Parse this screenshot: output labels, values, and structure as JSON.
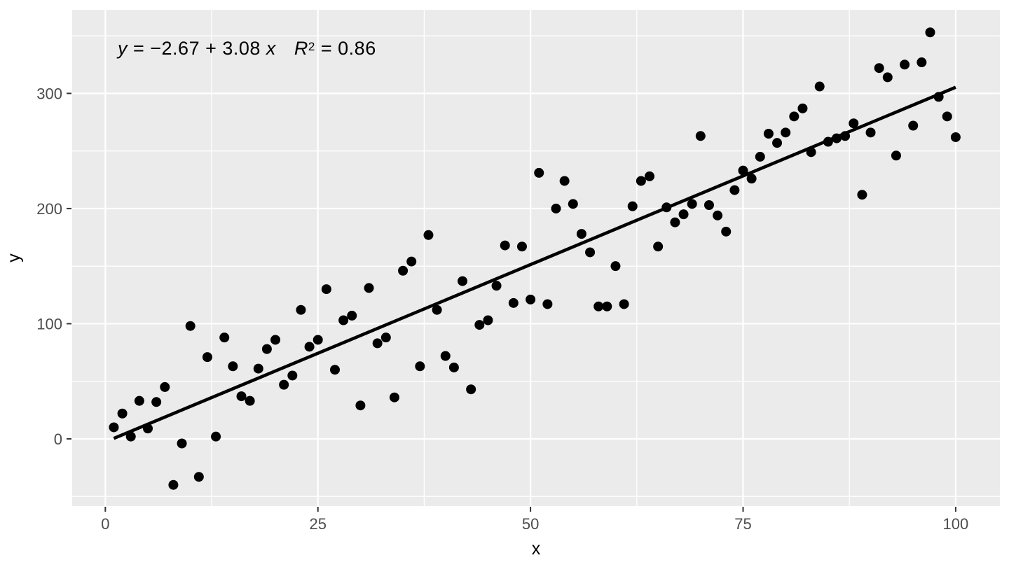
{
  "annotation": {
    "var_y": "y",
    "eq1": " = −2.67 + 3.08 ",
    "var_x": "x",
    "var_r": "R",
    "exp": "2",
    "eq2": " = 0.86"
  },
  "chart_data": {
    "type": "scatter",
    "title": "",
    "xlabel": "x",
    "ylabel": "y",
    "annotation_text": "y = −2.67 + 3.08 x   R² = 0.86",
    "x_ticks": [
      0,
      25,
      50,
      75,
      100
    ],
    "y_ticks": [
      0,
      100,
      200,
      300
    ],
    "x_minor_ticks": [
      12.5,
      37.5,
      62.5,
      87.5
    ],
    "y_minor_ticks": [
      -50,
      50,
      150,
      250,
      350
    ],
    "xlim": [
      -3.9,
      105.2
    ],
    "ylim": [
      -58.4,
      372.6
    ],
    "grid": true,
    "legend": "none",
    "regression": {
      "slope": 3.08,
      "intercept": -2.67,
      "r_squared": 0.86,
      "x_start": 1,
      "x_end": 100
    },
    "points": [
      [
        1,
        10
      ],
      [
        2,
        22
      ],
      [
        3,
        2
      ],
      [
        4,
        33
      ],
      [
        5,
        9
      ],
      [
        6,
        32
      ],
      [
        7,
        45
      ],
      [
        8,
        -40
      ],
      [
        9,
        -4
      ],
      [
        10,
        98
      ],
      [
        11,
        -33
      ],
      [
        12,
        71
      ],
      [
        13,
        2
      ],
      [
        14,
        88
      ],
      [
        15,
        63
      ],
      [
        16,
        37
      ],
      [
        17,
        33
      ],
      [
        18,
        61
      ],
      [
        19,
        78
      ],
      [
        20,
        86
      ],
      [
        21,
        47
      ],
      [
        22,
        55
      ],
      [
        23,
        112
      ],
      [
        24,
        80
      ],
      [
        25,
        86
      ],
      [
        26,
        130
      ],
      [
        27,
        60
      ],
      [
        28,
        103
      ],
      [
        29,
        107
      ],
      [
        30,
        29
      ],
      [
        31,
        131
      ],
      [
        32,
        83
      ],
      [
        33,
        88
      ],
      [
        34,
        36
      ],
      [
        35,
        146
      ],
      [
        36,
        154
      ],
      [
        37,
        63
      ],
      [
        38,
        177
      ],
      [
        39,
        112
      ],
      [
        40,
        72
      ],
      [
        41,
        62
      ],
      [
        42,
        137
      ],
      [
        43,
        43
      ],
      [
        44,
        99
      ],
      [
        45,
        103
      ],
      [
        46,
        133
      ],
      [
        47,
        168
      ],
      [
        48,
        118
      ],
      [
        49,
        167
      ],
      [
        50,
        121
      ],
      [
        51,
        231
      ],
      [
        52,
        117
      ],
      [
        53,
        200
      ],
      [
        54,
        224
      ],
      [
        55,
        204
      ],
      [
        56,
        178
      ],
      [
        57,
        162
      ],
      [
        58,
        115
      ],
      [
        59,
        115
      ],
      [
        60,
        150
      ],
      [
        61,
        117
      ],
      [
        62,
        202
      ],
      [
        63,
        224
      ],
      [
        64,
        228
      ],
      [
        65,
        167
      ],
      [
        66,
        201
      ],
      [
        67,
        188
      ],
      [
        68,
        195
      ],
      [
        69,
        204
      ],
      [
        70,
        263
      ],
      [
        71,
        203
      ],
      [
        72,
        194
      ],
      [
        73,
        180
      ],
      [
        74,
        216
      ],
      [
        75,
        233
      ],
      [
        76,
        226
      ],
      [
        77,
        245
      ],
      [
        78,
        265
      ],
      [
        79,
        257
      ],
      [
        80,
        266
      ],
      [
        81,
        280
      ],
      [
        82,
        287
      ],
      [
        83,
        249
      ],
      [
        84,
        306
      ],
      [
        85,
        258
      ],
      [
        86,
        261
      ],
      [
        87,
        263
      ],
      [
        88,
        274
      ],
      [
        89,
        212
      ],
      [
        90,
        266
      ],
      [
        91,
        322
      ],
      [
        92,
        314
      ],
      [
        93,
        246
      ],
      [
        94,
        325
      ],
      [
        95,
        272
      ],
      [
        96,
        327
      ],
      [
        97,
        353
      ],
      [
        98,
        297
      ],
      [
        99,
        280
      ],
      [
        100,
        262
      ]
    ],
    "colors": {
      "figure_background": "#FFFFFF",
      "panel_background": "#EBEBEB",
      "gridline": "#FFFFFF",
      "point": "#000000",
      "line": "#000000",
      "tick_label": "#4D4D4D",
      "tick_mark": "#333333",
      "axis_title": "#000000"
    }
  }
}
